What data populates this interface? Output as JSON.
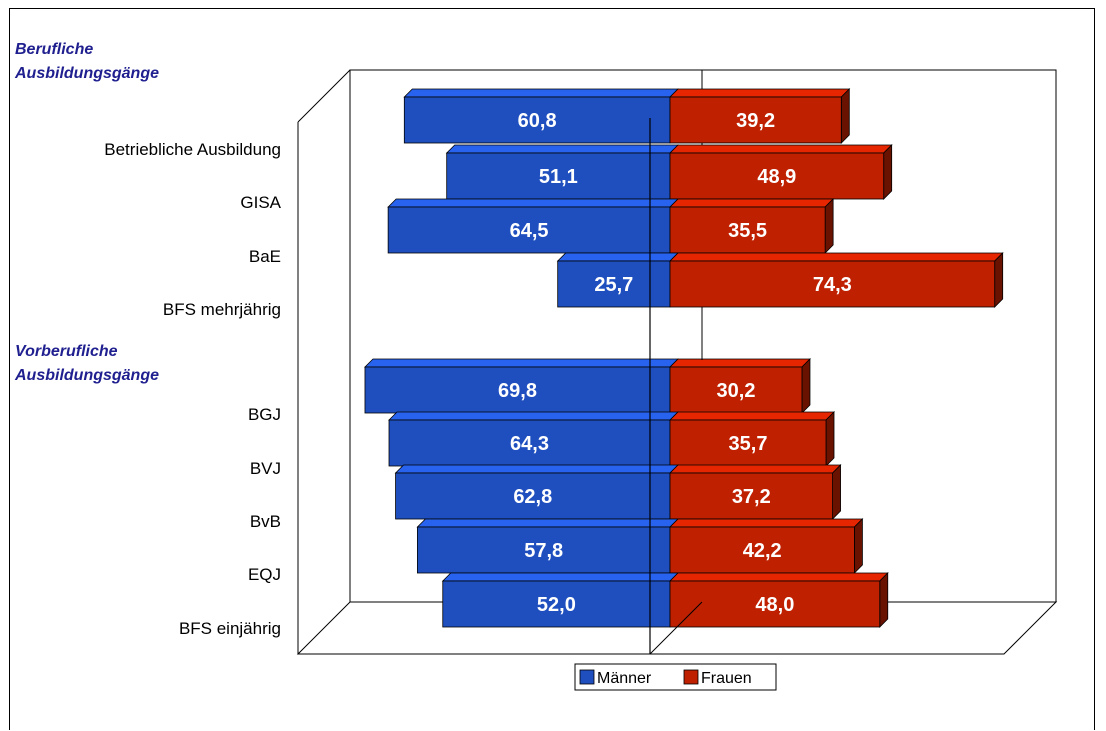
{
  "chart_data": {
    "type": "bar",
    "orientation": "horizontal-diverging-3d",
    "groups": [
      {
        "label": "Berufliche\nAusbildungsgänge",
        "categories": [
          "Betriebliche Ausbildung",
          "GISA",
          "BaE",
          "BFS mehrjährig"
        ]
      },
      {
        "label": "Vorberufliche\nAusbildungsgänge",
        "categories": [
          "BGJ",
          "BVJ",
          "BvB",
          "EQJ",
          "BFS einjährig"
        ]
      }
    ],
    "categories": [
      "Betriebliche Ausbildung",
      "GISA",
      "BaE",
      "BFS mehrjährig",
      "BGJ",
      "BVJ",
      "BvB",
      "EQJ",
      "BFS einjährig"
    ],
    "series": [
      {
        "name": "Männer",
        "color": "#1f4fbf",
        "values": [
          60.8,
          51.1,
          64.5,
          25.7,
          69.8,
          64.3,
          62.8,
          57.8,
          52.0
        ],
        "labels": [
          "60,8",
          "51,1",
          "64,5",
          "25,7",
          "69,8",
          "64,3",
          "62,8",
          "57,8",
          "52,0"
        ]
      },
      {
        "name": "Frauen",
        "color": "#bf2000",
        "values": [
          39.2,
          48.9,
          35.5,
          74.3,
          30.2,
          35.7,
          37.2,
          42.2,
          48.0
        ],
        "labels": [
          "39,2",
          "48,9",
          "35,5",
          "74,3",
          "30,2",
          "35,7",
          "37,2",
          "42,2",
          "48,0"
        ]
      }
    ],
    "legend": {
      "position": "bottom-center",
      "items": [
        "Männer",
        "Frauen"
      ]
    }
  }
}
